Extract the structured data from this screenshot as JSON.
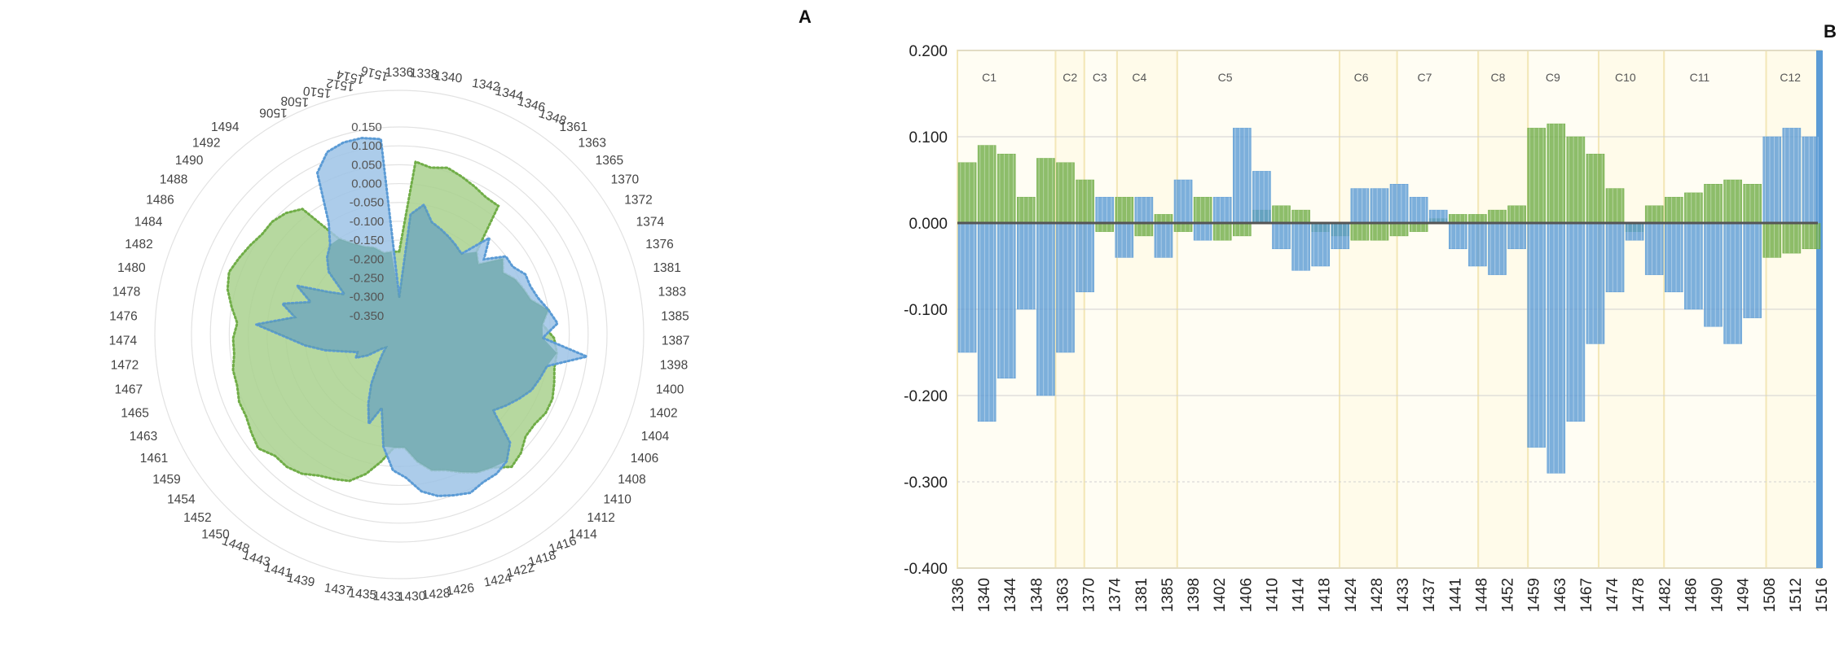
{
  "panels": {
    "a_label": "A",
    "b_label": "B"
  },
  "colors": {
    "blue": "#5b9bd5",
    "green": "#70ad47",
    "blueFill": "#9dc3e6",
    "greenFill": "#a9d18e",
    "panelBg": "#fffef0"
  },
  "chart_data": [
    {
      "type": "radar",
      "panel": "A",
      "r_ticks": [
        -0.35,
        -0.3,
        -0.25,
        -0.2,
        -0.15,
        -0.1,
        -0.05,
        0.0,
        0.05,
        0.1,
        0.15
      ],
      "r_tick_labels": [
        "-0.350",
        "-0.300",
        "-0.250",
        "-0.200",
        "-0.150",
        "-0.100",
        "-0.050",
        "0.000",
        "0.050",
        "0.100",
        "0.150"
      ],
      "rlim": [
        -0.4,
        0.15
      ],
      "categories": [
        "1336",
        "1338",
        "1340",
        "1342",
        "1344",
        "1346",
        "1348",
        "1361",
        "1363",
        "1365",
        "1370",
        "1372",
        "1374",
        "1376",
        "1381",
        "1383",
        "1385",
        "1387",
        "1398",
        "1400",
        "1402",
        "1404",
        "1406",
        "1408",
        "1410",
        "1412",
        "1414",
        "1416",
        "1418",
        "1422",
        "1424",
        "1426",
        "1428",
        "1430",
        "1433",
        "1435",
        "1437",
        "1439",
        "1441",
        "1443",
        "1448",
        "1450",
        "1452",
        "1454",
        "1459",
        "1461",
        "1463",
        "1465",
        "1467",
        "1472",
        "1474",
        "1476",
        "1478",
        "1480",
        "1482",
        "1484",
        "1486",
        "1488",
        "1490",
        "1492",
        "1494",
        "1506",
        "1508",
        "1510",
        "1512",
        "1514",
        "1516"
      ],
      "series": [
        {
          "name": "green",
          "values": [
            -0.18,
            0.06,
            0.05,
            0.06,
            0.05,
            0.04,
            0.03,
            0.03,
            -0.1,
            -0.12,
            -0.06,
            -0.08,
            -0.06,
            -0.05,
            -0.04,
            0.0,
            -0.02,
            0.01,
            0.02,
            0.02,
            0.03,
            0.04,
            0.04,
            0.03,
            0.03,
            0.05,
            0.06,
            0.03,
            0.02,
            0.0,
            -0.02,
            -0.03,
            -0.06,
            -0.1,
            -0.1,
            -0.06,
            -0.02,
            0.01,
            0.02,
            0.03,
            0.05,
            0.06,
            0.06,
            0.08,
            0.07,
            0.06,
            0.06,
            0.05,
            0.05,
            0.04,
            0.04,
            0.03,
            0.05,
            0.07,
            0.08,
            0.07,
            0.06,
            0.05,
            0.05,
            0.04,
            0.02,
            -0.1,
            -0.13,
            -0.15,
            -0.16,
            -0.18,
            -0.18
          ]
        },
        {
          "name": "blue",
          "values": [
            -0.3,
            -0.08,
            -0.05,
            -0.09,
            -0.1,
            -0.11,
            -0.12,
            -0.13,
            -0.05,
            -0.1,
            -0.05,
            -0.05,
            -0.03,
            -0.03,
            -0.02,
            0.0,
            0.02,
            -0.02,
            0.1,
            0.0,
            -0.01,
            -0.02,
            -0.04,
            -0.06,
            -0.08,
            0.01,
            0.04,
            0.05,
            0.05,
            0.06,
            0.05,
            0.04,
            0.02,
            -0.02,
            -0.04,
            -0.1,
            -0.2,
            -0.15,
            -0.2,
            -0.25,
            -0.3,
            -0.33,
            -0.35,
            -0.34,
            -0.3,
            -0.27,
            -0.28,
            -0.25,
            -0.2,
            -0.15,
            -0.1,
            -0.02,
            -0.12,
            -0.08,
            -0.15,
            -0.1,
            -0.18,
            -0.22,
            -0.15,
            -0.12,
            -0.1,
            -0.05,
            0.08,
            0.12,
            0.13,
            0.13,
            0.12
          ]
        }
      ]
    },
    {
      "type": "bar",
      "panel": "B",
      "ylim": [
        -0.4,
        0.2
      ],
      "y_ticks": [
        0.2,
        0.1,
        0.0,
        -0.1,
        -0.2,
        -0.3,
        -0.4
      ],
      "y_tick_labels": [
        "0.200",
        "0.100",
        "0.000",
        "-0.100",
        "-0.200",
        "-0.300",
        "-0.400"
      ],
      "x_tick_labels": [
        "1336",
        "1340",
        "1344",
        "1348",
        "1363",
        "1370",
        "1374",
        "1381",
        "1385",
        "1398",
        "1402",
        "1406",
        "1410",
        "1414",
        "1418",
        "1424",
        "1428",
        "1433",
        "1437",
        "1441",
        "1448",
        "1452",
        "1459",
        "1463",
        "1467",
        "1474",
        "1478",
        "1482",
        "1486",
        "1490",
        "1494",
        "1508",
        "1512",
        "1516"
      ],
      "clusters": [
        {
          "label": "C1",
          "start": 0,
          "end": 3.75
        },
        {
          "label": "C2",
          "start": 3.75,
          "end": 4.85
        },
        {
          "label": "C3",
          "start": 4.85,
          "end": 6.1
        },
        {
          "label": "C4",
          "start": 6.1,
          "end": 8.4
        },
        {
          "label": "C5",
          "start": 8.4,
          "end": 14.6
        },
        {
          "label": "C6",
          "start": 14.6,
          "end": 16.8
        },
        {
          "label": "C7",
          "start": 16.8,
          "end": 19.9
        },
        {
          "label": "C8",
          "start": 19.9,
          "end": 21.8
        },
        {
          "label": "C9",
          "start": 21.8,
          "end": 24.5
        },
        {
          "label": "C10",
          "start": 24.5,
          "end": 27.0
        },
        {
          "label": "C11",
          "start": 27.0,
          "end": 30.9
        },
        {
          "label": "C12",
          "start": 30.9,
          "end": 33.2
        }
      ],
      "series": [
        {
          "name": "green",
          "values": [
            0.07,
            0.09,
            0.08,
            0.03,
            0.075,
            0.07,
            0.05,
            -0.01,
            0.03,
            -0.015,
            0.01,
            -0.01,
            0.03,
            -0.02,
            -0.015,
            0.015,
            0.02,
            0.015,
            -0.01,
            -0.015,
            -0.02,
            -0.02,
            -0.015,
            -0.01,
            0.005,
            0.01,
            0.01,
            0.015,
            0.02,
            0.11,
            0.115,
            0.1,
            0.08,
            0.04,
            -0.01,
            0.02,
            0.03,
            0.035,
            0.045,
            0.05,
            0.045,
            -0.04,
            -0.035,
            -0.03
          ]
        },
        {
          "name": "blue",
          "values": [
            -0.15,
            -0.23,
            -0.18,
            -0.1,
            -0.2,
            -0.15,
            -0.08,
            0.03,
            -0.04,
            0.03,
            -0.04,
            0.05,
            -0.02,
            0.03,
            0.11,
            0.06,
            -0.03,
            -0.055,
            -0.05,
            -0.03,
            0.04,
            0.04,
            0.045,
            0.03,
            0.015,
            -0.03,
            -0.05,
            -0.06,
            -0.03,
            -0.26,
            -0.29,
            -0.23,
            -0.14,
            -0.08,
            -0.02,
            -0.06,
            -0.08,
            -0.1,
            -0.12,
            -0.14,
            -0.11,
            0.1,
            0.11,
            0.1
          ]
        }
      ]
    }
  ]
}
